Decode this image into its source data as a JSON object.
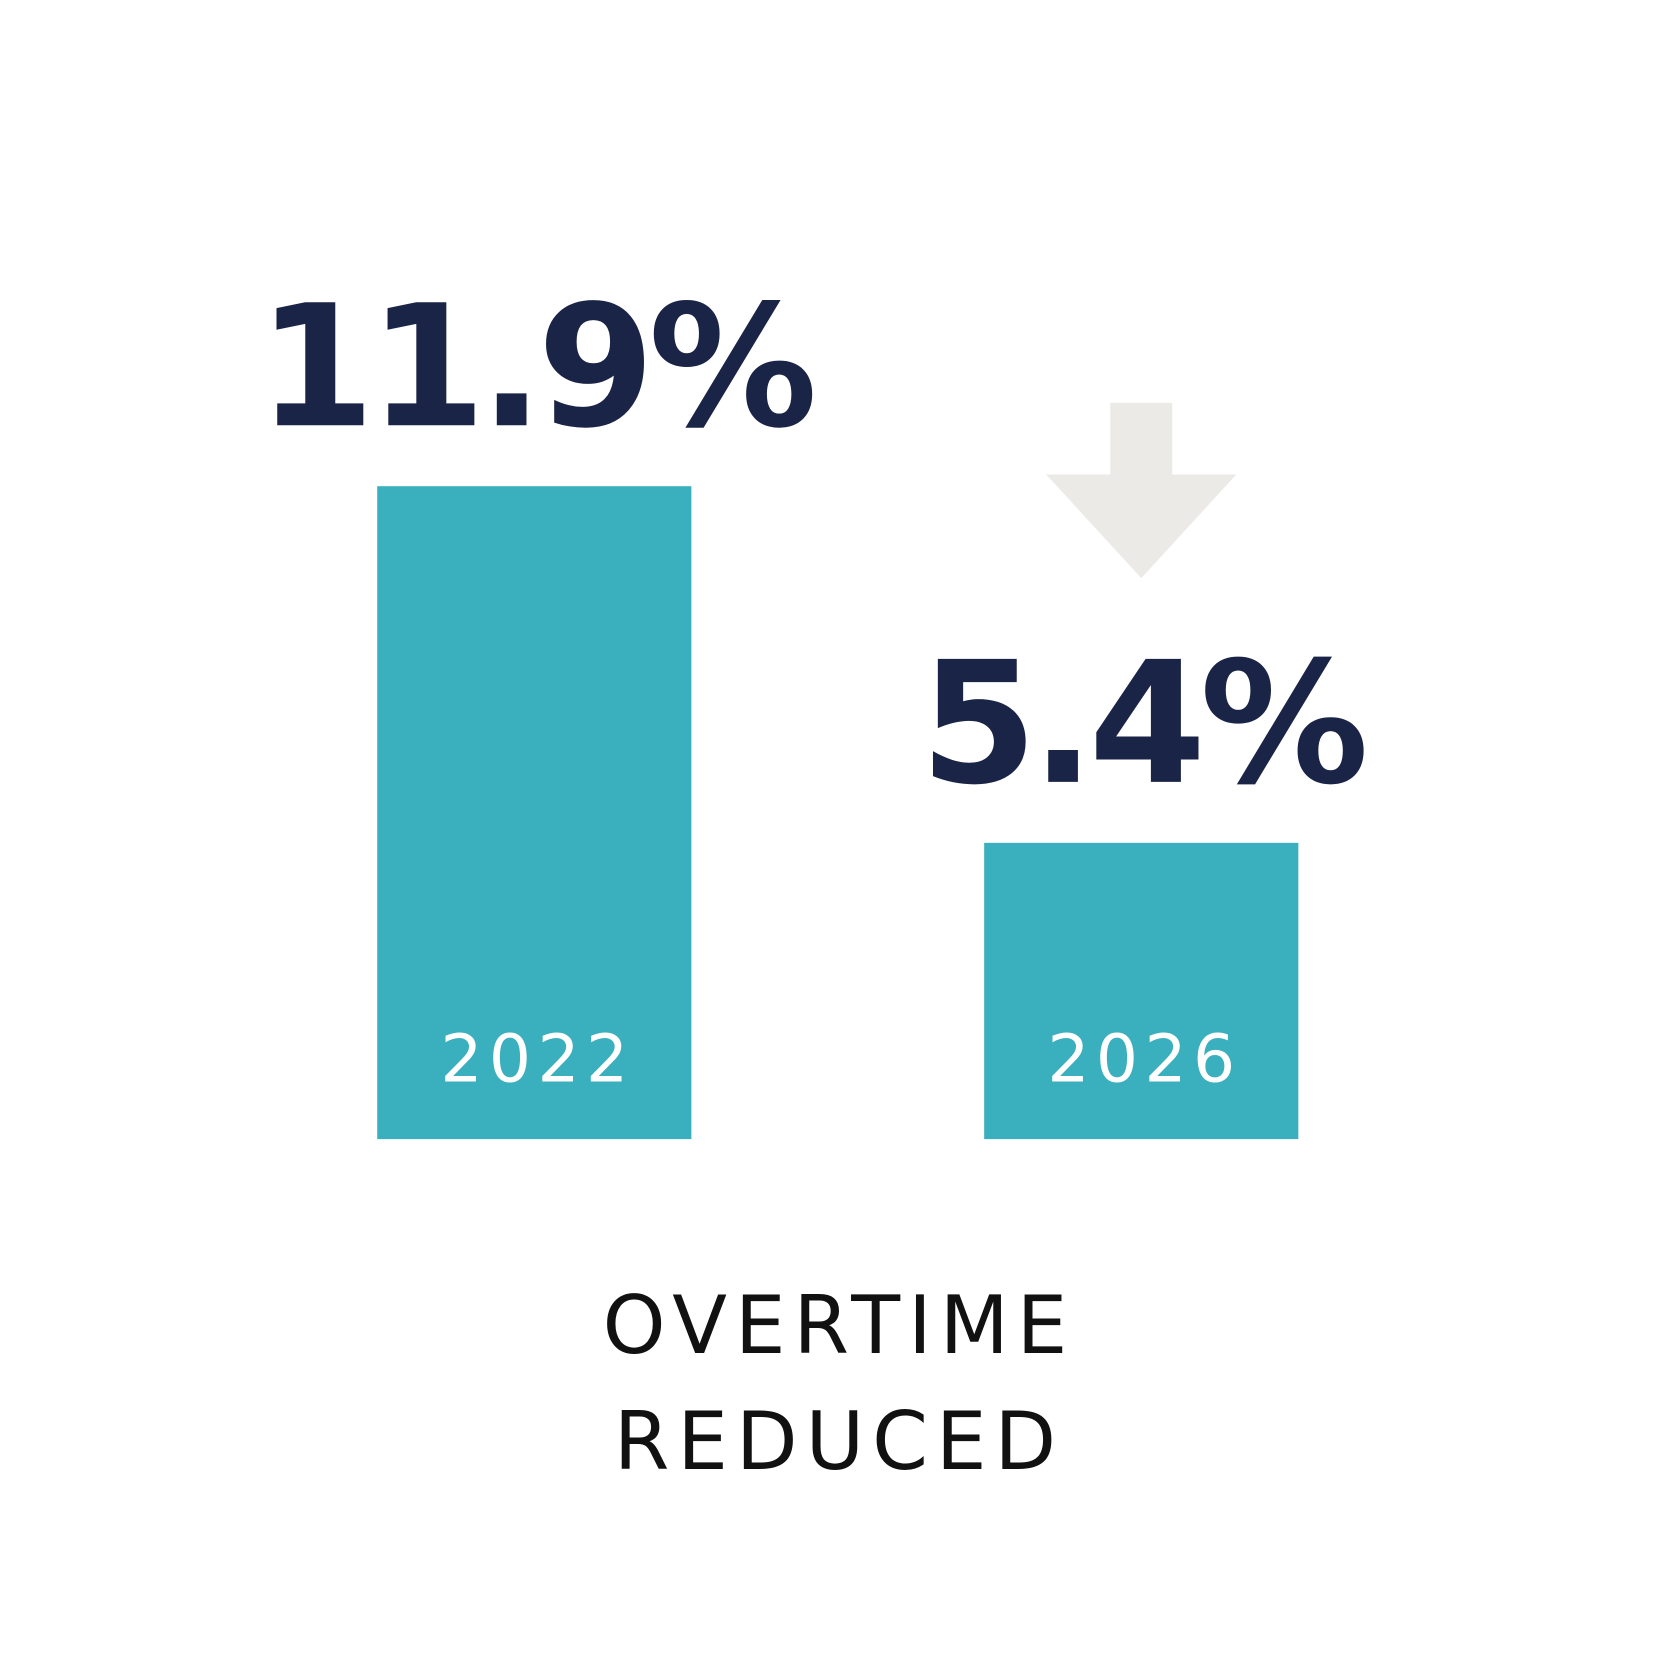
{
  "chart_data": {
    "type": "bar",
    "title": "OVERTIME REDUCED",
    "categories": [
      "2022",
      "2026"
    ],
    "values": [
      11.9,
      5.4
    ],
    "value_labels": [
      "11.9%",
      "5.4%"
    ],
    "color": "#3aafbd"
  }
}
